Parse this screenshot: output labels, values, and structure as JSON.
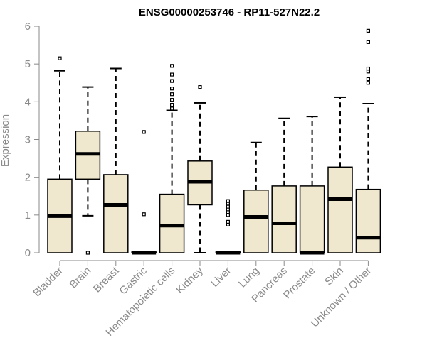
{
  "chart_data": {
    "type": "box",
    "title": "ENSG00000253746 - RP11-527N22.2",
    "xlabel": "",
    "ylabel": "Expression",
    "ylim": [
      0,
      6
    ],
    "yticks": [
      0,
      1,
      2,
      3,
      4,
      5,
      6
    ],
    "grid": false,
    "colors": {
      "box_fill": "#efe8ce",
      "stroke": "#000000",
      "axis": "#8a8a8a"
    },
    "categories": [
      "Bladder",
      "Brain",
      "Breast",
      "Gastric",
      "Hematopoietic cells",
      "Kidney",
      "Liver",
      "Lung",
      "Pancreas",
      "Prostate",
      "Skin",
      "Unknown / Other"
    ],
    "boxes": [
      {
        "category": "Bladder",
        "min": 0,
        "q1": 0,
        "median": 0.97,
        "q3": 1.95,
        "max": 4.82,
        "outliers": [
          5.15
        ]
      },
      {
        "category": "Brain",
        "min": 0.98,
        "q1": 1.95,
        "median": 2.62,
        "q3": 3.22,
        "max": 4.39,
        "outliers": [
          0.0
        ]
      },
      {
        "category": "Breast",
        "min": 0,
        "q1": 0,
        "median": 1.27,
        "q3": 2.07,
        "max": 4.88,
        "outliers": []
      },
      {
        "category": "Gastric",
        "min": 0,
        "q1": 0,
        "median": 0.0,
        "q3": 0.02,
        "max": 0.02,
        "outliers": [
          1.02,
          3.2
        ]
      },
      {
        "category": "Hematopoietic cells",
        "min": 0,
        "q1": 0,
        "median": 0.72,
        "q3": 1.55,
        "max": 3.77,
        "outliers": [
          3.82,
          3.92,
          4.05,
          4.2,
          4.35,
          4.55,
          4.72,
          4.95
        ]
      },
      {
        "category": "Kidney",
        "min": 0,
        "q1": 1.27,
        "median": 1.88,
        "q3": 2.43,
        "max": 3.97,
        "outliers": [
          4.39
        ]
      },
      {
        "category": "Liver",
        "min": 0,
        "q1": 0,
        "median": 0.0,
        "q3": 0.02,
        "max": 0.02,
        "outliers": [
          0.75,
          0.82,
          1.0,
          1.08,
          1.15,
          1.22,
          1.3,
          1.37
        ]
      },
      {
        "category": "Lung",
        "min": 0,
        "q1": 0,
        "median": 0.95,
        "q3": 1.66,
        "max": 2.92,
        "outliers": []
      },
      {
        "category": "Pancreas",
        "min": 0,
        "q1": 0,
        "median": 0.78,
        "q3": 1.77,
        "max": 3.56,
        "outliers": []
      },
      {
        "category": "Prostate",
        "min": 0,
        "q1": 0,
        "median": 0.0,
        "q3": 1.77,
        "max": 3.61,
        "outliers": []
      },
      {
        "category": "Skin",
        "min": 0,
        "q1": 0,
        "median": 1.42,
        "q3": 2.27,
        "max": 4.12,
        "outliers": []
      },
      {
        "category": "Unknown / Other",
        "min": 0,
        "q1": 0,
        "median": 0.4,
        "q3": 1.68,
        "max": 3.95,
        "outliers": [
          4.5,
          4.6,
          4.8,
          4.88,
          5.58,
          5.88
        ]
      }
    ]
  }
}
